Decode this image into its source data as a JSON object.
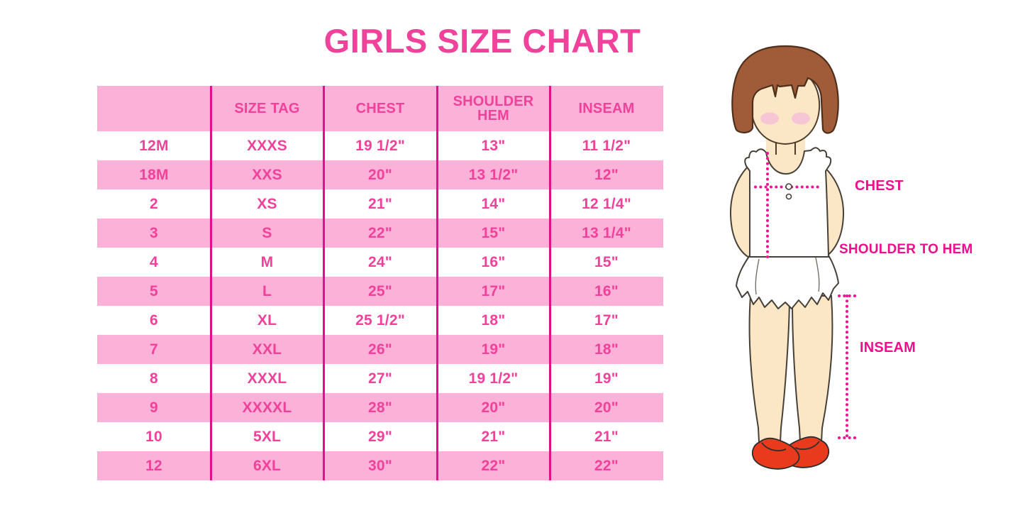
{
  "title": "GIRLS SIZE CHART",
  "chart_data": {
    "type": "table",
    "title": "GIRLS SIZE CHART",
    "columns": [
      "",
      "SIZE TAG",
      "CHEST",
      "SHOULDER HEM",
      "INSEAM"
    ],
    "rows": [
      [
        "12M",
        "XXXS",
        "19 1/2\"",
        "13\"",
        "11 1/2\""
      ],
      [
        "18M",
        "XXS",
        "20\"",
        "13 1/2\"",
        "12\""
      ],
      [
        "2",
        "XS",
        "21\"",
        "14\"",
        "12 1/4\""
      ],
      [
        "3",
        "S",
        "22\"",
        "15\"",
        "13 1/4\""
      ],
      [
        "4",
        "M",
        "24\"",
        "16\"",
        "15\""
      ],
      [
        "5",
        "L",
        "25\"",
        "17\"",
        "16\""
      ],
      [
        "6",
        "XL",
        "25 1/2\"",
        "18\"",
        "17\""
      ],
      [
        "7",
        "XXL",
        "26\"",
        "19\"",
        "18\""
      ],
      [
        "8",
        "XXXL",
        "27\"",
        "19 1/2\"",
        "19\""
      ],
      [
        "9",
        "XXXXL",
        "28\"",
        "20\"",
        "20\""
      ],
      [
        "10",
        "5XL",
        "29\"",
        "21\"",
        "21\""
      ],
      [
        "12",
        "6XL",
        "30\"",
        "22\"",
        "22\""
      ]
    ],
    "row_stripe_pattern": "header pink, then alternating white/pink",
    "legend_position": "none",
    "grid": "vertical magenta column separators only"
  },
  "diagram": {
    "description": "illustration of a girl showing measurement locations with dotted lines",
    "labels": {
      "chest": "CHEST",
      "shoulder_to_hem": "SHOULDER TO HEM",
      "inseam": "INSEAM"
    }
  },
  "colors": {
    "accent_pink_text": "#F0419B",
    "row_band_pink": "#FBB1D8",
    "column_line_magenta": "#E0108A",
    "label_magenta": "#ED0D8D",
    "dotted_line_magenta": "#ED1691",
    "hair_brown": "#A05C38",
    "skin": "#FBE7C5",
    "blush_pink": "#F7C6D5",
    "shoe_red": "#EA3A1E"
  }
}
